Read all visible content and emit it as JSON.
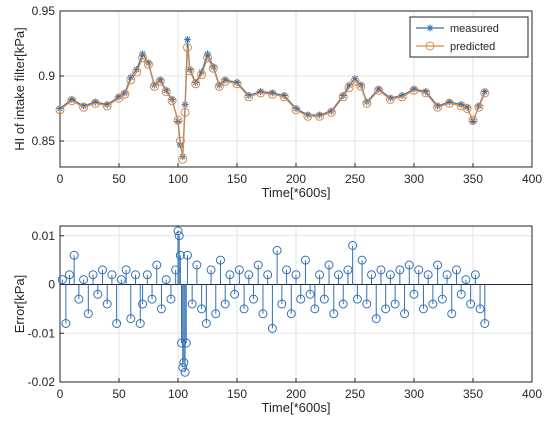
{
  "chart_data": [
    {
      "type": "line",
      "xlabel": "Time[*600s]",
      "ylabel": "HI of intake filter[kPa]",
      "xlim": [
        0,
        400
      ],
      "ylim": [
        0.83,
        0.95
      ],
      "xticks": [
        "0",
        "50",
        "100",
        "150",
        "200",
        "250",
        "300",
        "350",
        "400"
      ],
      "yticks": [
        "0.85",
        "0.9",
        "0.95"
      ],
      "grid": true,
      "legend_position": "top-right",
      "series": [
        {
          "name": "measured",
          "color": "#2f6fb6",
          "marker": "asterisk",
          "x": [
            0,
            10,
            20,
            30,
            40,
            50,
            55,
            60,
            65,
            70,
            75,
            80,
            85,
            90,
            95,
            100,
            102,
            104,
            106,
            108,
            110,
            115,
            120,
            125,
            130,
            135,
            140,
            150,
            160,
            170,
            180,
            190,
            200,
            210,
            220,
            230,
            240,
            245,
            250,
            255,
            260,
            270,
            280,
            290,
            300,
            310,
            320,
            330,
            340,
            345,
            350,
            355,
            360
          ],
          "y": [
            0.875,
            0.882,
            0.877,
            0.88,
            0.878,
            0.884,
            0.887,
            0.899,
            0.905,
            0.917,
            0.91,
            0.893,
            0.897,
            0.889,
            0.882,
            0.865,
            0.847,
            0.838,
            0.878,
            0.928,
            0.905,
            0.895,
            0.903,
            0.917,
            0.907,
            0.893,
            0.897,
            0.895,
            0.885,
            0.888,
            0.887,
            0.885,
            0.875,
            0.87,
            0.87,
            0.873,
            0.885,
            0.893,
            0.898,
            0.893,
            0.88,
            0.89,
            0.883,
            0.885,
            0.89,
            0.888,
            0.877,
            0.88,
            0.878,
            0.876,
            0.865,
            0.877,
            0.888
          ]
        },
        {
          "name": "predicted",
          "color": "#d98b4a",
          "marker": "circle",
          "x": [
            0,
            10,
            20,
            30,
            40,
            50,
            55,
            60,
            65,
            70,
            75,
            80,
            85,
            90,
            95,
            100,
            102,
            104,
            106,
            108,
            110,
            115,
            120,
            125,
            130,
            135,
            140,
            150,
            160,
            170,
            180,
            190,
            200,
            210,
            220,
            230,
            240,
            245,
            250,
            255,
            260,
            270,
            280,
            290,
            300,
            310,
            320,
            330,
            340,
            345,
            350,
            355,
            360
          ],
          "y": [
            0.874,
            0.881,
            0.876,
            0.879,
            0.877,
            0.883,
            0.886,
            0.897,
            0.903,
            0.914,
            0.909,
            0.892,
            0.896,
            0.888,
            0.881,
            0.866,
            0.85,
            0.836,
            0.872,
            0.922,
            0.904,
            0.894,
            0.901,
            0.914,
            0.906,
            0.892,
            0.896,
            0.894,
            0.884,
            0.887,
            0.886,
            0.884,
            0.874,
            0.869,
            0.869,
            0.872,
            0.884,
            0.891,
            0.896,
            0.892,
            0.879,
            0.889,
            0.882,
            0.884,
            0.889,
            0.887,
            0.876,
            0.879,
            0.877,
            0.875,
            0.866,
            0.876,
            0.887
          ]
        }
      ]
    },
    {
      "type": "scatter",
      "style": "stem",
      "xlabel": "Time[*600s]",
      "ylabel": "Error[kPa]",
      "xlim": [
        0,
        400
      ],
      "ylim": [
        -0.02,
        0.012
      ],
      "xticks": [
        "0",
        "50",
        "100",
        "150",
        "200",
        "250",
        "300",
        "350",
        "400"
      ],
      "yticks": [
        "-0.02",
        "-0.01",
        "0",
        "0.01"
      ],
      "grid": true,
      "series": [
        {
          "color": "#2f6fb6",
          "marker": "circle",
          "x": [
            2,
            5,
            8,
            12,
            16,
            20,
            24,
            28,
            32,
            36,
            40,
            44,
            48,
            52,
            56,
            60,
            64,
            68,
            70,
            74,
            78,
            82,
            86,
            90,
            94,
            98,
            100,
            101,
            102,
            103,
            104,
            105,
            106,
            107,
            108,
            112,
            116,
            120,
            124,
            128,
            132,
            136,
            140,
            144,
            148,
            152,
            156,
            160,
            164,
            168,
            172,
            176,
            180,
            184,
            188,
            192,
            196,
            200,
            204,
            208,
            212,
            216,
            220,
            224,
            228,
            232,
            236,
            240,
            244,
            248,
            252,
            256,
            260,
            264,
            268,
            272,
            276,
            280,
            284,
            288,
            292,
            296,
            300,
            304,
            308,
            312,
            316,
            320,
            324,
            328,
            332,
            336,
            340,
            344,
            348,
            352,
            356,
            360
          ],
          "y": [
            0.001,
            -0.008,
            0.002,
            0.006,
            -0.003,
            0.001,
            -0.006,
            0.002,
            -0.002,
            0.003,
            -0.004,
            0.002,
            -0.008,
            0.001,
            0.003,
            -0.007,
            0.002,
            -0.008,
            -0.004,
            0.002,
            -0.003,
            0.004,
            -0.005,
            0.001,
            -0.003,
            0.003,
            0.011,
            0.01,
            0.006,
            -0.012,
            -0.017,
            -0.016,
            -0.018,
            -0.012,
            0.006,
            -0.004,
            0.004,
            -0.005,
            -0.008,
            0.003,
            -0.006,
            0.005,
            -0.004,
            0.002,
            -0.002,
            0.003,
            -0.005,
            0.002,
            -0.003,
            0.004,
            -0.006,
            0.002,
            -0.009,
            0.007,
            -0.004,
            0.003,
            -0.006,
            0.002,
            -0.003,
            0.005,
            -0.002,
            -0.005,
            0.002,
            -0.003,
            0.004,
            -0.006,
            0.002,
            -0.004,
            0.003,
            0.008,
            -0.003,
            0.005,
            -0.004,
            0.002,
            -0.007,
            0.003,
            -0.005,
            0.002,
            -0.004,
            0.003,
            -0.006,
            0.004,
            -0.002,
            0.003,
            -0.005,
            0.002,
            -0.004,
            0.004,
            -0.003,
            0.002,
            -0.006,
            0.003,
            -0.002,
            0.001,
            -0.004,
            0.002,
            -0.005,
            -0.008
          ]
        }
      ]
    }
  ]
}
